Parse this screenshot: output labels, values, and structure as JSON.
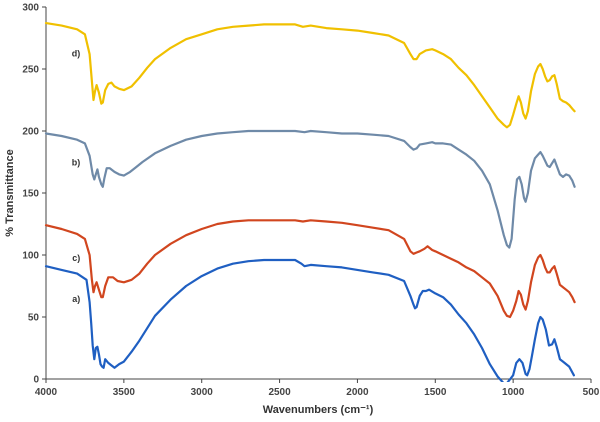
{
  "chart_data": {
    "type": "line",
    "title": "",
    "xlabel": "Wavenumbers (cm⁻¹)",
    "ylabel": "% Transmittance",
    "xlim": [
      4000,
      500
    ],
    "ylim": [
      0,
      300
    ],
    "x_ticks": [
      4000,
      3500,
      3000,
      2500,
      2000,
      1500,
      1000,
      500
    ],
    "y_ticks": [
      0,
      50,
      100,
      150,
      200,
      250,
      300
    ],
    "grid": false,
    "series": [
      {
        "name": "a)",
        "label": "a)",
        "color": "#1f5fc2",
        "points": [
          [
            4000,
            91
          ],
          [
            3900,
            88
          ],
          [
            3800,
            85
          ],
          [
            3740,
            80
          ],
          [
            3720,
            62
          ],
          [
            3710,
            45
          ],
          [
            3700,
            27
          ],
          [
            3690,
            16
          ],
          [
            3680,
            25
          ],
          [
            3670,
            26
          ],
          [
            3660,
            20
          ],
          [
            3650,
            12
          ],
          [
            3640,
            10
          ],
          [
            3630,
            9
          ],
          [
            3620,
            16
          ],
          [
            3600,
            13
          ],
          [
            3580,
            11
          ],
          [
            3560,
            9
          ],
          [
            3530,
            12
          ],
          [
            3500,
            14
          ],
          [
            3450,
            22
          ],
          [
            3400,
            31
          ],
          [
            3350,
            41
          ],
          [
            3300,
            51
          ],
          [
            3200,
            64
          ],
          [
            3100,
            75
          ],
          [
            3000,
            83
          ],
          [
            2900,
            89
          ],
          [
            2800,
            93
          ],
          [
            2700,
            95
          ],
          [
            2600,
            96
          ],
          [
            2500,
            96
          ],
          [
            2400,
            96
          ],
          [
            2360,
            93
          ],
          [
            2340,
            91
          ],
          [
            2300,
            92
          ],
          [
            2200,
            91
          ],
          [
            2100,
            90
          ],
          [
            2000,
            88
          ],
          [
            1900,
            86
          ],
          [
            1800,
            84
          ],
          [
            1700,
            79
          ],
          [
            1660,
            67
          ],
          [
            1640,
            60
          ],
          [
            1630,
            57
          ],
          [
            1620,
            58
          ],
          [
            1600,
            67
          ],
          [
            1580,
            71
          ],
          [
            1560,
            71
          ],
          [
            1540,
            72
          ],
          [
            1500,
            69
          ],
          [
            1450,
            66
          ],
          [
            1400,
            60
          ],
          [
            1350,
            52
          ],
          [
            1300,
            45
          ],
          [
            1250,
            36
          ],
          [
            1200,
            25
          ],
          [
            1150,
            12
          ],
          [
            1100,
            2
          ],
          [
            1050,
            -5
          ],
          [
            1000,
            3
          ],
          [
            980,
            13
          ],
          [
            960,
            16
          ],
          [
            940,
            13
          ],
          [
            920,
            4
          ],
          [
            910,
            3
          ],
          [
            895,
            8
          ],
          [
            880,
            18
          ],
          [
            860,
            32
          ],
          [
            840,
            45
          ],
          [
            825,
            50
          ],
          [
            810,
            48
          ],
          [
            790,
            40
          ],
          [
            770,
            27
          ],
          [
            750,
            28
          ],
          [
            735,
            32
          ],
          [
            720,
            26
          ],
          [
            700,
            16
          ],
          [
            680,
            14
          ],
          [
            660,
            12
          ],
          [
            640,
            10
          ],
          [
            610,
            3
          ]
        ]
      },
      {
        "name": "b)",
        "label": "b)",
        "color": "#6f8aa8",
        "points": [
          [
            4000,
            198
          ],
          [
            3900,
            196
          ],
          [
            3800,
            193
          ],
          [
            3750,
            190
          ],
          [
            3720,
            180
          ],
          [
            3700,
            165
          ],
          [
            3690,
            161
          ],
          [
            3680,
            165
          ],
          [
            3670,
            169
          ],
          [
            3660,
            163
          ],
          [
            3645,
            157
          ],
          [
            3635,
            155
          ],
          [
            3625,
            162
          ],
          [
            3610,
            170
          ],
          [
            3590,
            170
          ],
          [
            3560,
            167
          ],
          [
            3530,
            165
          ],
          [
            3500,
            164
          ],
          [
            3460,
            167
          ],
          [
            3420,
            171
          ],
          [
            3380,
            175
          ],
          [
            3300,
            182
          ],
          [
            3200,
            188
          ],
          [
            3100,
            193
          ],
          [
            3000,
            196
          ],
          [
            2900,
            198
          ],
          [
            2800,
            199
          ],
          [
            2700,
            200
          ],
          [
            2600,
            200
          ],
          [
            2500,
            200
          ],
          [
            2400,
            200
          ],
          [
            2340,
            199
          ],
          [
            2300,
            200
          ],
          [
            2200,
            199
          ],
          [
            2100,
            198
          ],
          [
            2000,
            198
          ],
          [
            1900,
            197
          ],
          [
            1800,
            196
          ],
          [
            1700,
            192
          ],
          [
            1660,
            187
          ],
          [
            1640,
            185
          ],
          [
            1620,
            186
          ],
          [
            1600,
            189
          ],
          [
            1560,
            190
          ],
          [
            1520,
            191
          ],
          [
            1500,
            190
          ],
          [
            1450,
            190
          ],
          [
            1400,
            189
          ],
          [
            1350,
            185
          ],
          [
            1300,
            181
          ],
          [
            1250,
            176
          ],
          [
            1200,
            168
          ],
          [
            1150,
            157
          ],
          [
            1100,
            136
          ],
          [
            1060,
            116
          ],
          [
            1040,
            108
          ],
          [
            1025,
            106
          ],
          [
            1010,
            113
          ],
          [
            990,
            145
          ],
          [
            975,
            161
          ],
          [
            960,
            163
          ],
          [
            945,
            157
          ],
          [
            930,
            146
          ],
          [
            920,
            143
          ],
          [
            905,
            150
          ],
          [
            885,
            168
          ],
          [
            860,
            178
          ],
          [
            840,
            181
          ],
          [
            825,
            183
          ],
          [
            810,
            180
          ],
          [
            795,
            176
          ],
          [
            780,
            172
          ],
          [
            765,
            171
          ],
          [
            750,
            174
          ],
          [
            735,
            177
          ],
          [
            720,
            172
          ],
          [
            700,
            165
          ],
          [
            680,
            163
          ],
          [
            660,
            165
          ],
          [
            640,
            164
          ],
          [
            620,
            160
          ],
          [
            605,
            155
          ]
        ]
      },
      {
        "name": "c)",
        "label": "c)",
        "color": "#d1461f",
        "points": [
          [
            4000,
            124
          ],
          [
            3900,
            121
          ],
          [
            3800,
            117
          ],
          [
            3750,
            113
          ],
          [
            3720,
            100
          ],
          [
            3705,
            80
          ],
          [
            3695,
            70
          ],
          [
            3685,
            75
          ],
          [
            3675,
            78
          ],
          [
            3660,
            72
          ],
          [
            3645,
            66
          ],
          [
            3635,
            66
          ],
          [
            3620,
            75
          ],
          [
            3600,
            82
          ],
          [
            3570,
            82
          ],
          [
            3540,
            79
          ],
          [
            3500,
            78
          ],
          [
            3450,
            80
          ],
          [
            3400,
            85
          ],
          [
            3350,
            93
          ],
          [
            3300,
            100
          ],
          [
            3200,
            109
          ],
          [
            3100,
            116
          ],
          [
            3000,
            121
          ],
          [
            2900,
            125
          ],
          [
            2800,
            127
          ],
          [
            2700,
            128
          ],
          [
            2600,
            128
          ],
          [
            2500,
            128
          ],
          [
            2400,
            128
          ],
          [
            2350,
            127
          ],
          [
            2300,
            128
          ],
          [
            2200,
            127
          ],
          [
            2100,
            126
          ],
          [
            2000,
            124
          ],
          [
            1900,
            122
          ],
          [
            1800,
            120
          ],
          [
            1700,
            113
          ],
          [
            1660,
            103
          ],
          [
            1640,
            101
          ],
          [
            1620,
            102
          ],
          [
            1600,
            103
          ],
          [
            1570,
            105
          ],
          [
            1550,
            107
          ],
          [
            1520,
            104
          ],
          [
            1500,
            103
          ],
          [
            1450,
            100
          ],
          [
            1400,
            97
          ],
          [
            1350,
            94
          ],
          [
            1300,
            90
          ],
          [
            1250,
            87
          ],
          [
            1200,
            82
          ],
          [
            1150,
            77
          ],
          [
            1100,
            67
          ],
          [
            1060,
            55
          ],
          [
            1040,
            51
          ],
          [
            1020,
            50
          ],
          [
            1000,
            55
          ],
          [
            980,
            63
          ],
          [
            965,
            71
          ],
          [
            950,
            68
          ],
          [
            935,
            60
          ],
          [
            920,
            56
          ],
          [
            905,
            63
          ],
          [
            885,
            78
          ],
          [
            860,
            92
          ],
          [
            840,
            98
          ],
          [
            825,
            100
          ],
          [
            810,
            96
          ],
          [
            795,
            90
          ],
          [
            780,
            86
          ],
          [
            765,
            86
          ],
          [
            750,
            89
          ],
          [
            735,
            91
          ],
          [
            720,
            85
          ],
          [
            700,
            76
          ],
          [
            680,
            74
          ],
          [
            660,
            72
          ],
          [
            640,
            70
          ],
          [
            620,
            66
          ],
          [
            605,
            62
          ]
        ]
      },
      {
        "name": "d)",
        "label": "d)",
        "color": "#f0c000",
        "points": [
          [
            4000,
            287
          ],
          [
            3900,
            285
          ],
          [
            3800,
            282
          ],
          [
            3750,
            278
          ],
          [
            3720,
            262
          ],
          [
            3705,
            240
          ],
          [
            3695,
            225
          ],
          [
            3685,
            232
          ],
          [
            3675,
            237
          ],
          [
            3660,
            231
          ],
          [
            3645,
            222
          ],
          [
            3635,
            223
          ],
          [
            3620,
            233
          ],
          [
            3600,
            238
          ],
          [
            3580,
            239
          ],
          [
            3560,
            236
          ],
          [
            3530,
            234
          ],
          [
            3500,
            233
          ],
          [
            3450,
            236
          ],
          [
            3400,
            243
          ],
          [
            3350,
            251
          ],
          [
            3300,
            258
          ],
          [
            3200,
            267
          ],
          [
            3100,
            274
          ],
          [
            3000,
            278
          ],
          [
            2900,
            282
          ],
          [
            2800,
            284
          ],
          [
            2700,
            285
          ],
          [
            2600,
            286
          ],
          [
            2500,
            286
          ],
          [
            2400,
            286
          ],
          [
            2350,
            284
          ],
          [
            2300,
            285
          ],
          [
            2200,
            283
          ],
          [
            2100,
            282
          ],
          [
            2000,
            281
          ],
          [
            1900,
            279
          ],
          [
            1800,
            277
          ],
          [
            1700,
            271
          ],
          [
            1660,
            262
          ],
          [
            1640,
            258
          ],
          [
            1620,
            258
          ],
          [
            1600,
            262
          ],
          [
            1560,
            265
          ],
          [
            1520,
            266
          ],
          [
            1500,
            265
          ],
          [
            1450,
            262
          ],
          [
            1400,
            258
          ],
          [
            1350,
            251
          ],
          [
            1300,
            245
          ],
          [
            1250,
            237
          ],
          [
            1200,
            228
          ],
          [
            1150,
            219
          ],
          [
            1100,
            210
          ],
          [
            1060,
            205
          ],
          [
            1040,
            203
          ],
          [
            1020,
            205
          ],
          [
            1000,
            213
          ],
          [
            980,
            222
          ],
          [
            965,
            228
          ],
          [
            950,
            223
          ],
          [
            935,
            214
          ],
          [
            920,
            210
          ],
          [
            905,
            216
          ],
          [
            885,
            232
          ],
          [
            860,
            246
          ],
          [
            840,
            252
          ],
          [
            825,
            254
          ],
          [
            810,
            250
          ],
          [
            795,
            244
          ],
          [
            780,
            240
          ],
          [
            765,
            241
          ],
          [
            750,
            244
          ],
          [
            735,
            245
          ],
          [
            720,
            238
          ],
          [
            700,
            226
          ],
          [
            680,
            224
          ],
          [
            660,
            223
          ],
          [
            640,
            221
          ],
          [
            620,
            218
          ],
          [
            605,
            216
          ]
        ]
      }
    ]
  }
}
